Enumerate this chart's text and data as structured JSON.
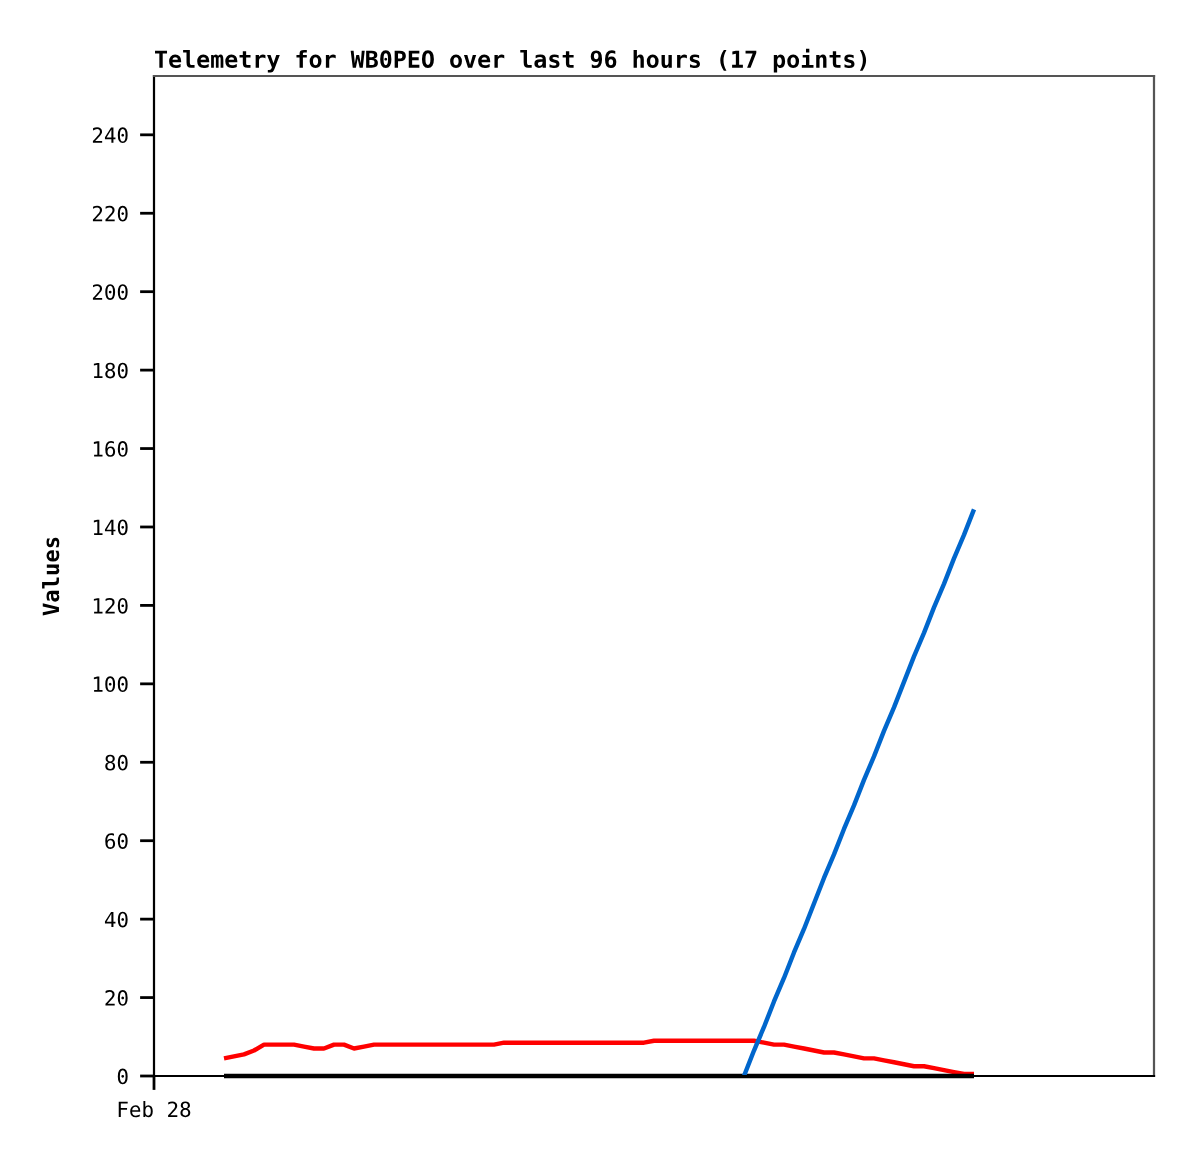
{
  "chart_data": {
    "type": "line",
    "title": "Telemetry for WB0PEO over last 96 hours (17 points)",
    "ylabel": "Values",
    "categories": [
      "Feb 28",
      null,
      null,
      null,
      null,
      null,
      null,
      null,
      null,
      null,
      null,
      null,
      null,
      null,
      null,
      null,
      null,
      null,
      null,
      null,
      null,
      null,
      null,
      null,
      null,
      null,
      null,
      null,
      null,
      null,
      null,
      null,
      null,
      null,
      null,
      null,
      null,
      null,
      null,
      null,
      null,
      null,
      null,
      null,
      null,
      null,
      null,
      null,
      null,
      null,
      null,
      null,
      null,
      null,
      null,
      null,
      null,
      null,
      null,
      null,
      null,
      null,
      null,
      null,
      null,
      null,
      null,
      null,
      null,
      null,
      null,
      null,
      null,
      null,
      null,
      null,
      null,
      null,
      null,
      null,
      null,
      null,
      null,
      null,
      null,
      null,
      null,
      null,
      null,
      null,
      null,
      null,
      null,
      null,
      null,
      null,
      null,
      null,
      null,
      null,
      null
    ],
    "ylim": [
      0,
      255
    ],
    "yticks": [
      0,
      20,
      40,
      60,
      80,
      100,
      120,
      140,
      160,
      180,
      200,
      220,
      240
    ],
    "marker": "none",
    "line_style": "solid",
    "series": [
      {
        "color": "#ff0000",
        "values": [
          null,
          null,
          null,
          null,
          null,
          null,
          null,
          4.5,
          5,
          5.5,
          6.5,
          8,
          8,
          8,
          8,
          7.5,
          7,
          7,
          8,
          8,
          7,
          7.5,
          8,
          8,
          8,
          8,
          8,
          8,
          8,
          8,
          8,
          8,
          8,
          8,
          8,
          8.5,
          8.5,
          8.5,
          8.5,
          8.5,
          8.5,
          8.5,
          8.5,
          8.5,
          8.5,
          8.5,
          8.5,
          8.5,
          8.5,
          8.5,
          9,
          9,
          9,
          9,
          9,
          9,
          9,
          9,
          9,
          9,
          9,
          8.5,
          8,
          8,
          7.5,
          7,
          6.5,
          6,
          6,
          5.5,
          5,
          4.5,
          4.5,
          4,
          3.5,
          3,
          2.5,
          2.5,
          2,
          1.5,
          1,
          0.5,
          0.5,
          null,
          null,
          null,
          null,
          null,
          null,
          null,
          null,
          null,
          null,
          null,
          null,
          null,
          null,
          null,
          null,
          null,
          null
        ]
      },
      {
        "color": "#000000",
        "values": [
          null,
          null,
          null,
          null,
          null,
          null,
          null,
          0,
          0,
          0,
          0,
          0,
          0,
          0,
          0,
          0,
          0,
          0,
          0,
          0,
          0,
          0,
          0,
          0,
          0,
          0,
          0,
          0,
          0,
          0,
          0,
          0,
          0,
          0,
          0,
          0,
          0,
          0,
          0,
          0,
          0,
          0,
          0,
          0,
          0,
          0,
          0,
          0,
          0,
          0,
          0,
          0,
          0,
          0,
          0,
          0,
          0,
          0,
          0,
          0,
          0,
          0,
          0,
          0,
          0,
          0,
          0,
          0,
          0,
          0,
          0,
          0,
          0,
          0,
          0,
          0,
          0,
          0,
          0,
          0,
          0,
          0,
          0,
          null,
          null,
          null,
          null,
          null,
          null,
          null,
          null,
          null,
          null,
          null,
          null,
          null,
          null,
          null,
          null,
          null,
          null
        ]
      },
      {
        "color": "#0066cc",
        "values": [
          null,
          null,
          null,
          null,
          null,
          null,
          null,
          null,
          null,
          null,
          null,
          null,
          null,
          null,
          null,
          null,
          null,
          null,
          null,
          null,
          null,
          null,
          null,
          null,
          null,
          null,
          null,
          null,
          null,
          null,
          null,
          null,
          null,
          null,
          null,
          null,
          null,
          null,
          null,
          null,
          null,
          null,
          null,
          null,
          null,
          null,
          null,
          null,
          null,
          null,
          null,
          null,
          null,
          null,
          null,
          null,
          null,
          null,
          null,
          0,
          6.5,
          12.5,
          19,
          25,
          31.5,
          37.5,
          44,
          50.5,
          56.5,
          63,
          69,
          75.5,
          81.5,
          88,
          94,
          100.5,
          107,
          113,
          119.5,
          125.5,
          132,
          138,
          144.5,
          null,
          null,
          null,
          null,
          null,
          null,
          null,
          null,
          null,
          null,
          null,
          null,
          null,
          null,
          null,
          null,
          null,
          null
        ]
      }
    ]
  }
}
